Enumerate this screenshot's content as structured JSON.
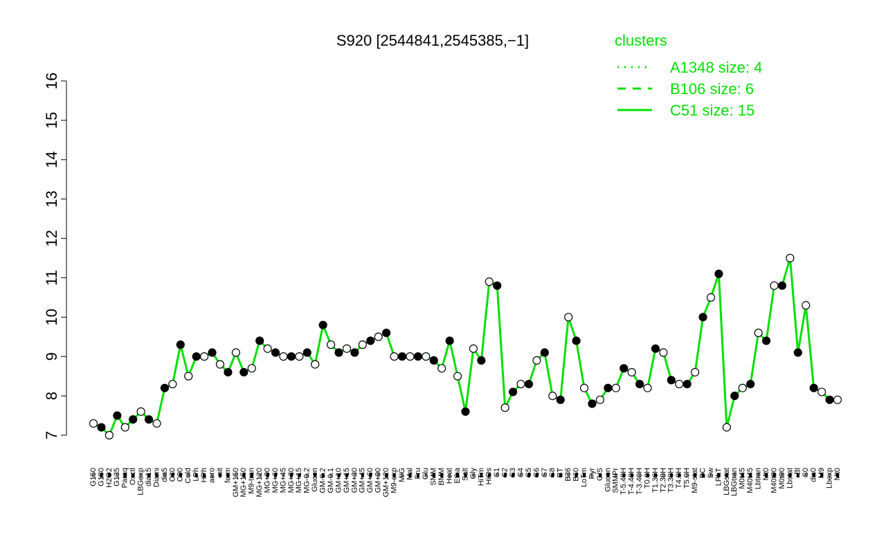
{
  "chart_data": {
    "type": "line",
    "title": "S920 [2544841,2545385,−1]",
    "legend": {
      "title": "clusters",
      "color": "#00e000",
      "position": "top-right",
      "entries": [
        {
          "name": "A1348 size: 4",
          "style": "dotted"
        },
        {
          "name": "B106 size: 6",
          "style": "dashed"
        },
        {
          "name": "C51 size: 15",
          "style": "solid"
        }
      ]
    },
    "categories": [
      "G150",
      "G180",
      "H2O2",
      "G135",
      "Paraq",
      "Oxctl",
      "LBGexp",
      "dia15",
      "Diami",
      "dia5",
      "C30",
      "C90",
      "Cold",
      "LPh",
      "HPh",
      "aero",
      "nit",
      "ferm",
      "GM+150",
      "MG+150",
      "M9-tran",
      "MG+120",
      "MG+90",
      "MG+60",
      "MG+45",
      "MG+30",
      "MG+15",
      "MG-0.2",
      "Glucon",
      "GM-0.2",
      "GM-0.1",
      "GM+10",
      "GM+15",
      "GM+30",
      "GM+45",
      "GM+60",
      "GM+90",
      "GM+120",
      "M9-exp",
      "M/G",
      "Mal",
      "Fru",
      "Glu",
      "SMM",
      "BMM",
      "Heat",
      "Etha",
      "Salt",
      "Gly",
      "HiTm",
      "HiOs",
      "S1",
      "S2",
      "S3",
      "S4",
      "S5",
      "S6",
      "S7",
      "S8",
      "BT",
      "B36",
      "B60",
      "LoTm",
      "Pyr",
      "G/S",
      "Glucon",
      "SMMPr",
      "T-5.40H",
      "T-4.40H",
      "T-3.40H",
      "T0.0H",
      "T1.30H",
      "T2.30H",
      "T3.30H",
      "T4.0H",
      "T5.0H",
      "M9-stat",
      "BC",
      "Sw",
      "LPhT",
      "LBGstat",
      "LBGtran",
      "M0t45",
      "M40t45",
      "Lbtran",
      "Mt0",
      "M40t90",
      "M0t90",
      "Lbstat",
      "Bl",
      "S0",
      "dia0",
      "M9",
      "Lbexp",
      "Mt0"
    ],
    "series": [
      {
        "name": "S920",
        "color": "#00e000",
        "values": [
          7.3,
          7.2,
          7.0,
          7.5,
          7.2,
          7.4,
          7.6,
          7.4,
          7.3,
          8.2,
          8.3,
          9.3,
          8.5,
          9.0,
          9.0,
          9.1,
          8.8,
          8.6,
          9.1,
          8.6,
          8.7,
          9.4,
          9.2,
          9.1,
          9.0,
          9.0,
          9.0,
          9.1,
          8.8,
          9.8,
          9.3,
          9.1,
          9.2,
          9.1,
          9.3,
          9.4,
          9.5,
          9.6,
          9.0,
          9.0,
          9.0,
          9.0,
          9.0,
          8.9,
          8.7,
          9.4,
          8.5,
          7.6,
          9.2,
          8.9,
          10.9,
          10.8,
          7.7,
          8.1,
          8.3,
          8.3,
          8.9,
          9.1,
          8.0,
          7.9,
          10.0,
          9.4,
          8.2,
          7.8,
          7.9,
          8.2,
          8.2,
          8.7,
          8.6,
          8.3,
          8.2,
          9.2,
          9.1,
          8.4,
          8.3,
          8.3,
          8.6,
          10.0,
          10.5,
          11.1,
          7.2,
          8.0,
          8.2,
          8.3,
          9.6,
          9.4,
          10.8,
          10.8,
          11.5,
          9.1,
          10.3,
          8.2,
          8.1,
          7.9,
          7.9
        ]
      }
    ],
    "ylim": [
      7,
      16
    ],
    "yticks": [
      7,
      8,
      9,
      10,
      11,
      12,
      13,
      14,
      15,
      16
    ]
  }
}
